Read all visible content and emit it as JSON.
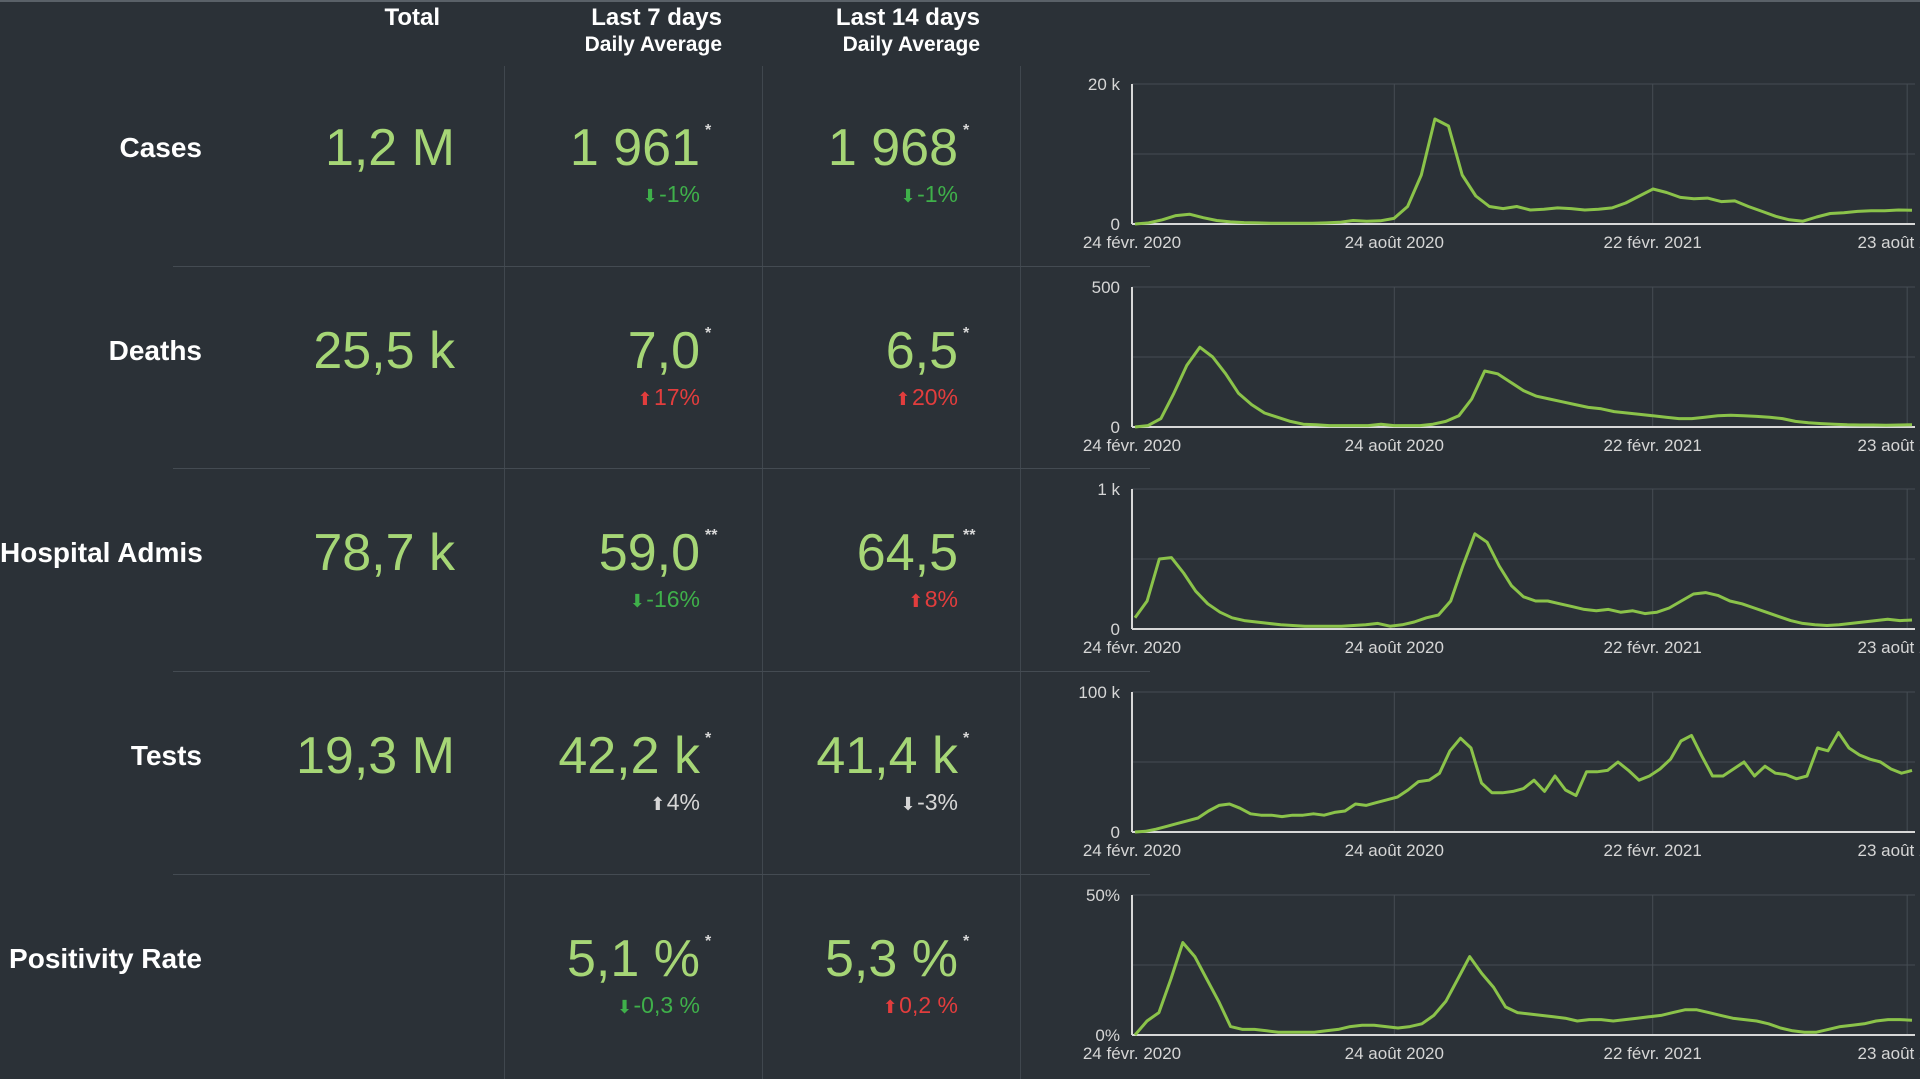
{
  "colors": {
    "background": "#2b3137",
    "value_green": "#a6d676",
    "line_green": "#8bc34a",
    "down_green": "#3fb04a",
    "up_red": "#e23d3d",
    "neutral": "#d6d6d6"
  },
  "headers": {
    "total": "Total",
    "last7": "Last 7 days",
    "last7_sub": "Daily Average",
    "last14": "Last 14 days",
    "last14_sub": "Daily Average"
  },
  "rows": [
    {
      "label": "Cases",
      "total": "1,2 M",
      "avg7": "1 961",
      "avg7_mark": "*",
      "delta7": "-1%",
      "delta7_dir": "down",
      "delta7_color": "green",
      "avg14": "1 968",
      "avg14_mark": "*",
      "delta14": "-1%",
      "delta14_dir": "down",
      "delta14_color": "green"
    },
    {
      "label": "Deaths",
      "total": "25,5 k",
      "avg7": "7,0",
      "avg7_mark": "*",
      "delta7": "17%",
      "delta7_dir": "up",
      "delta7_color": "red",
      "avg14": "6,5",
      "avg14_mark": "*",
      "delta14": "20%",
      "delta14_dir": "up",
      "delta14_color": "red"
    },
    {
      "label": "Hospital Admissions",
      "total": "78,7 k",
      "avg7": "59,0",
      "avg7_mark": "**",
      "delta7": "-16%",
      "delta7_dir": "down",
      "delta7_color": "green",
      "avg14": "64,5",
      "avg14_mark": "**",
      "delta14": "8%",
      "delta14_dir": "up",
      "delta14_color": "red"
    },
    {
      "label": "Tests",
      "total": "19,3 M",
      "avg7": "42,2 k",
      "avg7_mark": "*",
      "delta7": "4%",
      "delta7_dir": "up",
      "delta7_color": "neutral",
      "avg14": "41,4 k",
      "avg14_mark": "*",
      "delta14": "-3%",
      "delta14_dir": "down",
      "delta14_color": "neutral"
    },
    {
      "label": "Positivity Rate",
      "total": "",
      "avg7": "5,1 %",
      "avg7_mark": "*",
      "delta7": "-0,3 %",
      "delta7_dir": "down",
      "delta7_color": "green",
      "avg14": "5,3 %",
      "avg14_mark": "*",
      "delta14": "0,2 %",
      "delta14_dir": "up",
      "delta14_color": "red"
    }
  ],
  "chart_data": [
    {
      "type": "line",
      "title": "",
      "xlabel": "",
      "ylabel": "",
      "x_ticks": [
        "24 févr. 2020",
        "24 août 2020",
        "22 févr. 2021",
        "23 août 2021"
      ],
      "y_ticks": [
        "0",
        "20 k"
      ],
      "ylim": [
        0,
        20000
      ],
      "grid": true,
      "series": [
        {
          "values": [
            0,
            150,
            600,
            1200,
            1400,
            900,
            500,
            300,
            200,
            150,
            100,
            100,
            100,
            100,
            150,
            250,
            500,
            400,
            450,
            800,
            2500,
            7000,
            15000,
            14000,
            7000,
            4000,
            2500,
            2200,
            2500,
            2000,
            2100,
            2300,
            2200,
            2000,
            2100,
            2300,
            3000,
            4000,
            5000,
            4500,
            3800,
            3600,
            3700,
            3200,
            3300,
            2500,
            1800,
            1100,
            600,
            400,
            1000,
            1500,
            1600,
            1800,
            1900,
            1900,
            2000,
            1961
          ]
        }
      ]
    },
    {
      "type": "line",
      "title": "",
      "xlabel": "",
      "ylabel": "",
      "x_ticks": [
        "24 févr. 2020",
        "24 août 2020",
        "22 févr. 2021",
        "23 août 2021"
      ],
      "y_ticks": [
        "0",
        "500"
      ],
      "ylim": [
        0,
        500
      ],
      "grid": true,
      "series": [
        {
          "values": [
            0,
            5,
            30,
            120,
            220,
            285,
            250,
            190,
            120,
            80,
            50,
            35,
            20,
            10,
            8,
            5,
            5,
            5,
            5,
            10,
            5,
            5,
            5,
            10,
            20,
            40,
            100,
            200,
            190,
            160,
            130,
            110,
            100,
            90,
            80,
            70,
            65,
            55,
            50,
            45,
            40,
            35,
            30,
            30,
            35,
            40,
            42,
            40,
            38,
            35,
            30,
            20,
            15,
            12,
            10,
            8,
            7,
            7,
            6,
            7,
            8
          ]
        }
      ]
    },
    {
      "type": "line",
      "title": "",
      "xlabel": "",
      "ylabel": "",
      "x_ticks": [
        "24 févr. 2020",
        "24 août 2020",
        "22 févr. 2021",
        "23 août 2021"
      ],
      "y_ticks": [
        "0",
        "1 k"
      ],
      "ylim": [
        0,
        1000
      ],
      "grid": true,
      "series": [
        {
          "values": [
            80,
            200,
            500,
            510,
            400,
            270,
            180,
            120,
            80,
            60,
            50,
            40,
            30,
            25,
            20,
            20,
            20,
            20,
            25,
            30,
            40,
            20,
            30,
            50,
            80,
            100,
            200,
            450,
            680,
            620,
            450,
            310,
            230,
            200,
            200,
            180,
            160,
            140,
            130,
            140,
            120,
            130,
            110,
            120,
            150,
            200,
            250,
            260,
            240,
            200,
            180,
            150,
            120,
            90,
            60,
            40,
            30,
            25,
            30,
            40,
            50,
            60,
            70,
            60,
            64
          ]
        }
      ]
    },
    {
      "type": "line",
      "title": "",
      "xlabel": "",
      "ylabel": "",
      "x_ticks": [
        "24 févr. 2020",
        "24 août 2020",
        "22 févr. 2021",
        "23 août 2021"
      ],
      "y_ticks": [
        "0",
        "100 k"
      ],
      "ylim": [
        0,
        100000
      ],
      "grid": true,
      "series": [
        {
          "values": [
            0,
            500,
            2000,
            4000,
            6000,
            8000,
            10000,
            15000,
            19000,
            20000,
            17000,
            13000,
            12000,
            12000,
            11000,
            12000,
            12000,
            13000,
            12000,
            14000,
            15000,
            20000,
            19000,
            21000,
            23000,
            25000,
            30000,
            36000,
            37000,
            42000,
            58000,
            67000,
            60000,
            35000,
            28000,
            28000,
            29000,
            31000,
            37000,
            29000,
            40000,
            30000,
            26000,
            43000,
            43000,
            44000,
            50000,
            44000,
            37000,
            40000,
            45000,
            52000,
            65000,
            69000,
            54000,
            40000,
            40000,
            45000,
            50000,
            40000,
            47000,
            42000,
            41000,
            38000,
            40000,
            60000,
            58000,
            71000,
            60000,
            55000,
            52000,
            50000,
            45000,
            42000,
            44000
          ]
        }
      ]
    },
    {
      "type": "line",
      "title": "",
      "xlabel": "",
      "ylabel": "",
      "x_ticks": [
        "24 févr. 2020",
        "24 août 2020",
        "22 févr. 2021",
        "23 août 2021"
      ],
      "y_ticks": [
        "0%",
        "50%"
      ],
      "ylim": [
        0,
        50
      ],
      "grid": true,
      "series": [
        {
          "values": [
            0,
            5,
            8,
            20,
            33,
            28,
            20,
            12,
            3,
            2,
            2,
            1.5,
            1,
            1,
            1,
            1,
            1.5,
            2,
            3,
            3.5,
            3.5,
            3,
            2.5,
            3,
            4,
            7,
            12,
            20,
            28,
            22,
            17,
            10,
            8,
            7.5,
            7,
            6.5,
            6,
            5,
            5.5,
            5.5,
            5,
            5.5,
            6,
            6.5,
            7,
            8,
            9,
            9,
            8,
            7,
            6,
            5.5,
            5,
            4,
            2.5,
            1.5,
            1,
            1,
            2,
            3,
            3.5,
            4,
            5,
            5.5,
            5.5,
            5.3
          ]
        }
      ]
    }
  ]
}
